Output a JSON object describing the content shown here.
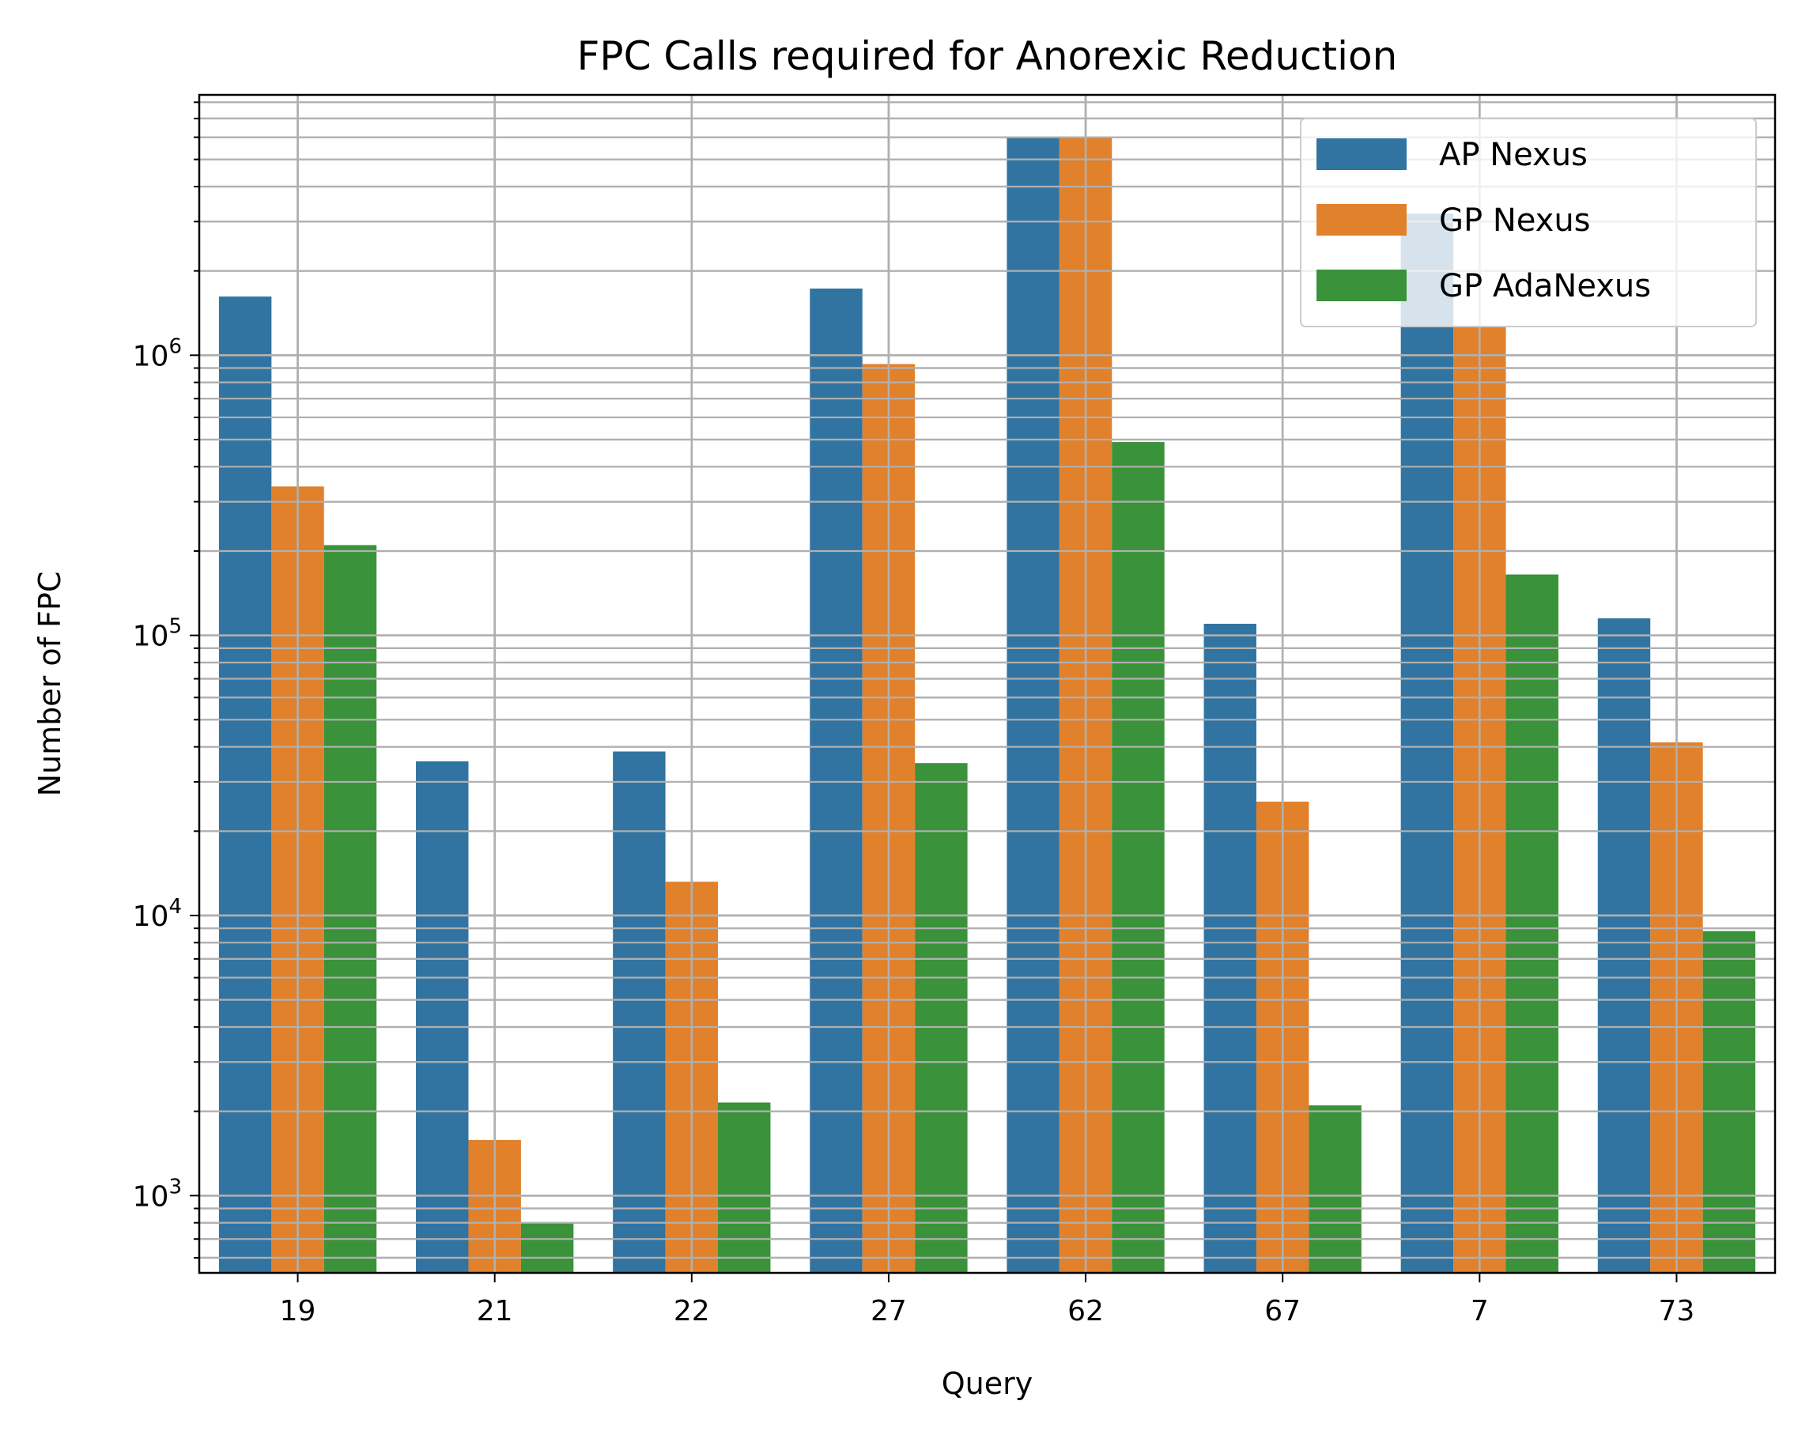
{
  "chart_data": {
    "type": "bar",
    "title": "FPC Calls required for Anorexic Reduction",
    "xlabel": "Query",
    "ylabel": "Number of FPC",
    "yscale": "log",
    "ylim": [
      530,
      8500000
    ],
    "ytick_exponents": [
      3,
      4,
      5,
      6
    ],
    "grid": true,
    "legend_position": "top-right",
    "categories": [
      "19",
      "21",
      "22",
      "27",
      "62",
      "67",
      "7",
      "73"
    ],
    "series": [
      {
        "name": "AP Nexus",
        "color": "#3274a1",
        "values": [
          1620000,
          35500,
          38500,
          1730000,
          6000000,
          110000,
          3200000,
          115000
        ]
      },
      {
        "name": "GP Nexus",
        "color": "#e1812c",
        "values": [
          340000,
          1580,
          13200,
          930000,
          6000000,
          25500,
          1270000,
          41500
        ]
      },
      {
        "name": "GP AdaNexus",
        "color": "#3a923a",
        "values": [
          210000,
          800,
          2150,
          35000,
          490000,
          2100,
          165000,
          8800
        ]
      }
    ]
  }
}
